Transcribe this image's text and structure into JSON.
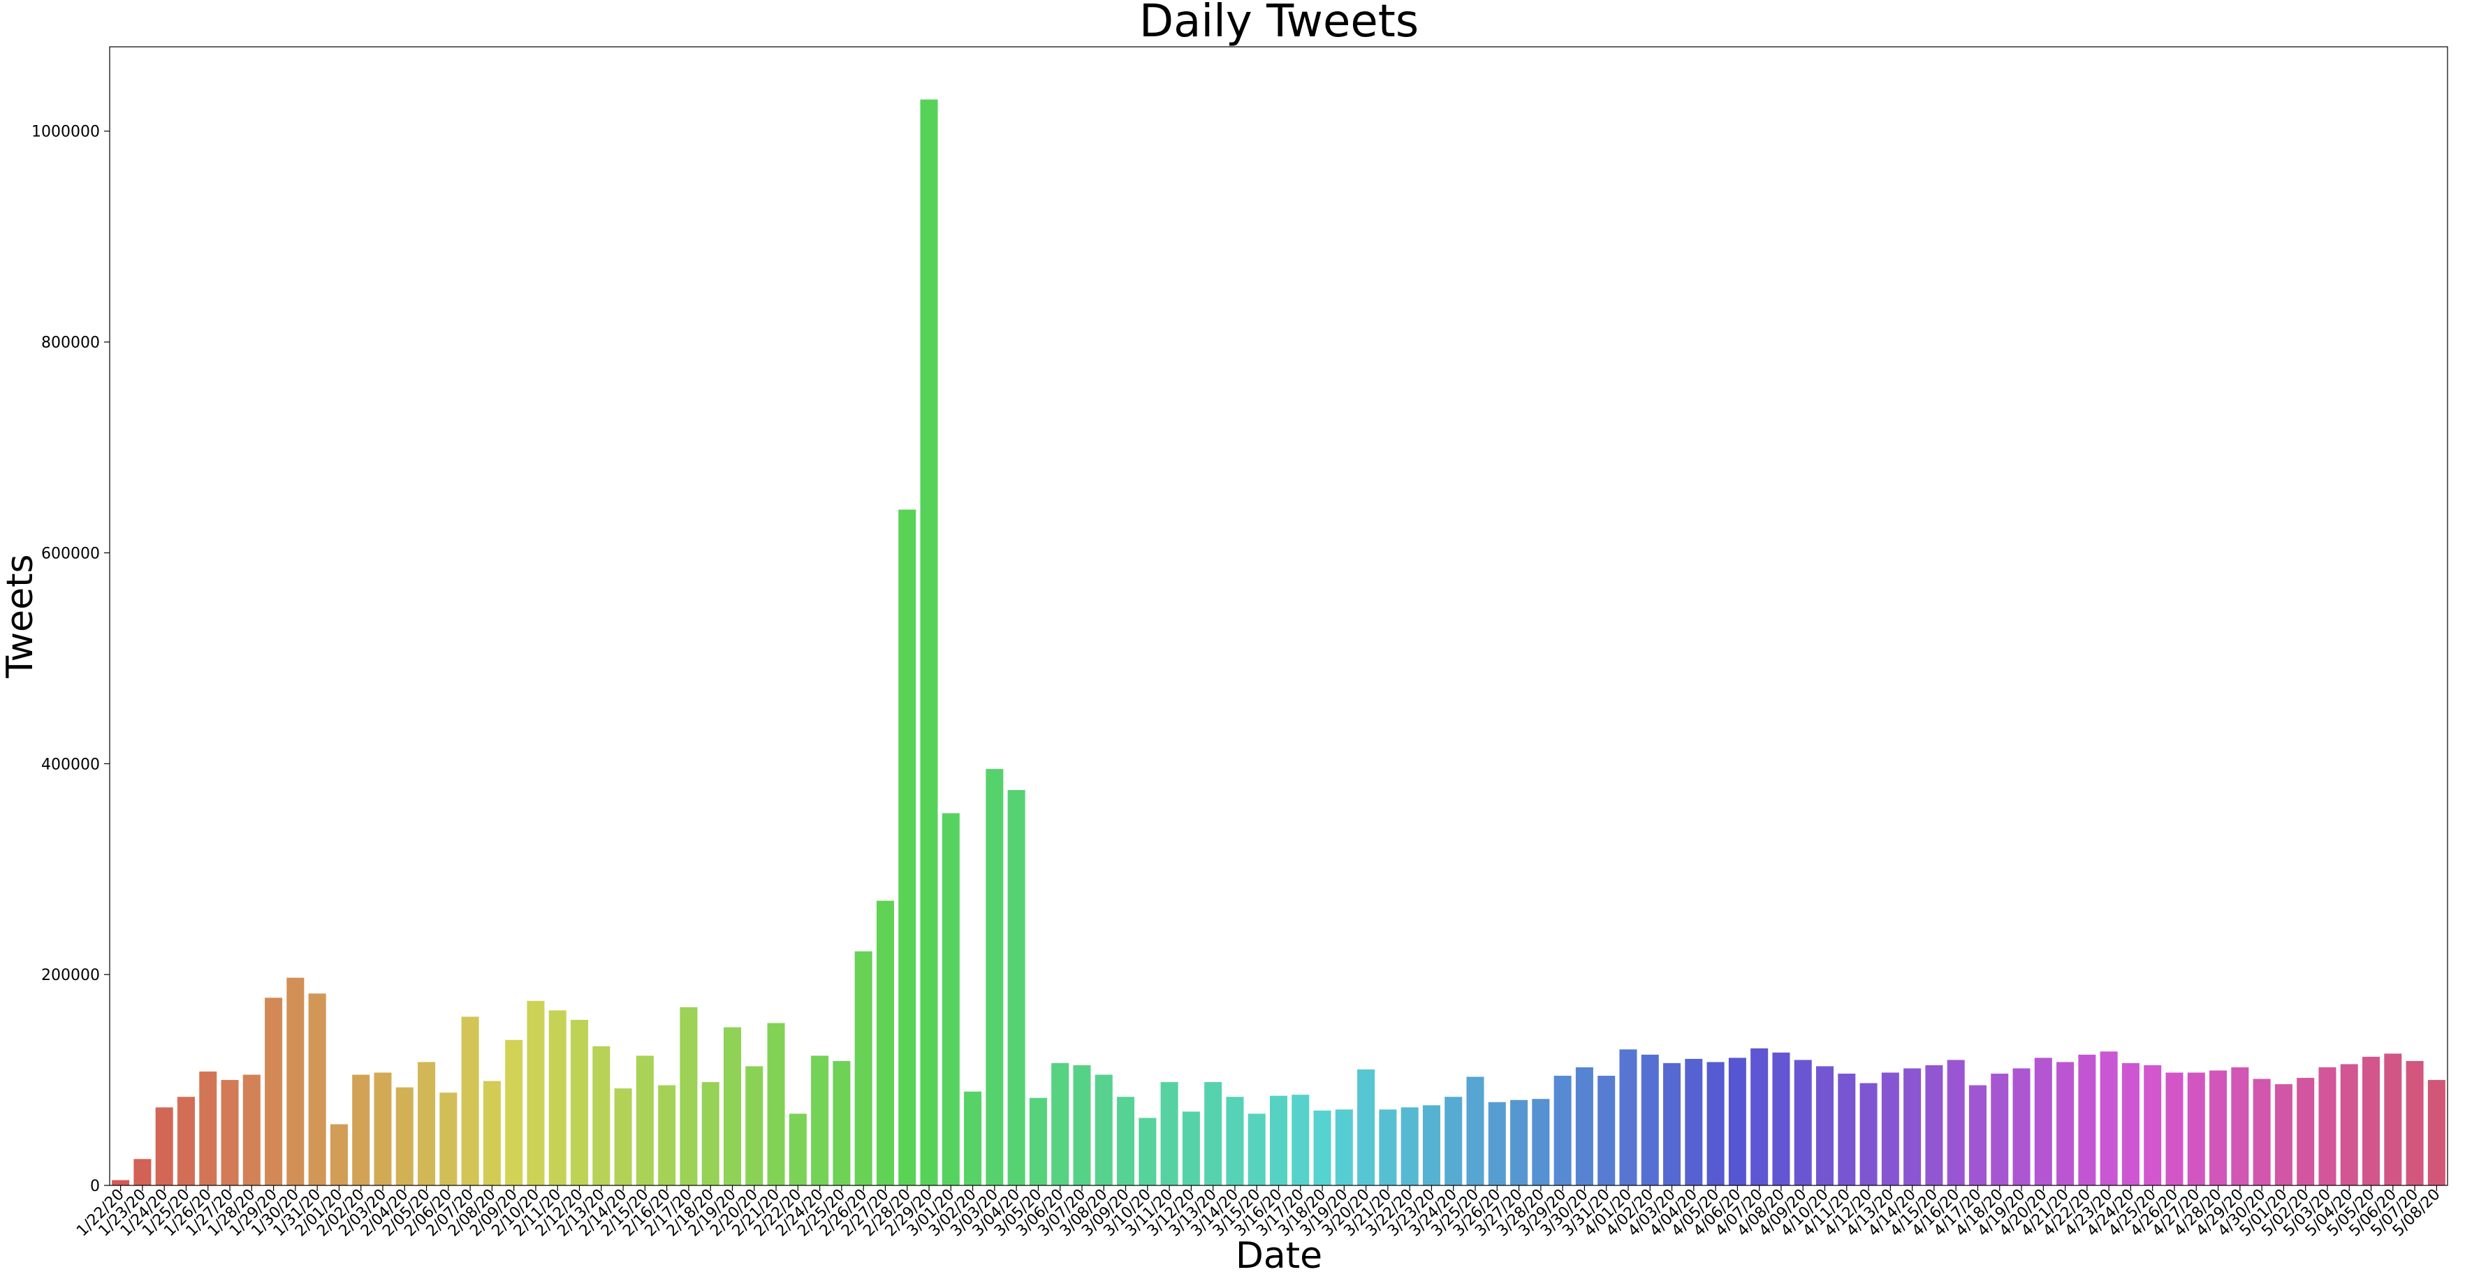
{
  "chart_data": {
    "type": "bar",
    "title": "Daily Tweets",
    "xlabel": "Date",
    "ylabel": "Tweets",
    "ylim": [
      0,
      1080000
    ],
    "yticks": [
      0,
      200000,
      400000,
      600000,
      800000,
      1000000
    ],
    "ytick_labels": [
      "0",
      "200000",
      "400000",
      "600000",
      "800000",
      "1000000"
    ],
    "grid": false,
    "categories": [
      "1/22/20",
      "1/23/20",
      "1/24/20",
      "1/25/20",
      "1/26/20",
      "1/27/20",
      "1/28/20",
      "1/29/20",
      "1/30/20",
      "1/31/20",
      "2/01/20",
      "2/02/20",
      "2/03/20",
      "2/04/20",
      "2/05/20",
      "2/06/20",
      "2/07/20",
      "2/08/20",
      "2/09/20",
      "2/10/20",
      "2/11/20",
      "2/12/20",
      "2/13/20",
      "2/14/20",
      "2/15/20",
      "2/16/20",
      "2/17/20",
      "2/18/20",
      "2/19/20",
      "2/20/20",
      "2/21/20",
      "2/22/20",
      "2/24/20",
      "2/25/20",
      "2/26/20",
      "2/27/20",
      "2/28/20",
      "2/29/20",
      "3/01/20",
      "3/02/20",
      "3/03/20",
      "3/04/20",
      "3/05/20",
      "3/06/20",
      "3/07/20",
      "3/08/20",
      "3/09/20",
      "3/10/20",
      "3/11/20",
      "3/12/20",
      "3/13/20",
      "3/14/20",
      "3/15/20",
      "3/16/20",
      "3/17/20",
      "3/18/20",
      "3/19/20",
      "3/20/20",
      "3/21/20",
      "3/22/20",
      "3/23/20",
      "3/24/20",
      "3/25/20",
      "3/26/20",
      "3/27/20",
      "3/28/20",
      "3/29/20",
      "3/30/20",
      "3/31/20",
      "4/01/20",
      "4/02/20",
      "4/03/20",
      "4/04/20",
      "4/05/20",
      "4/06/20",
      "4/07/20",
      "4/08/20",
      "4/09/20",
      "4/10/20",
      "4/11/20",
      "4/12/20",
      "4/13/20",
      "4/14/20",
      "4/15/20",
      "4/16/20",
      "4/17/20",
      "4/18/20",
      "4/19/20",
      "4/20/20",
      "4/21/20",
      "4/22/20",
      "4/23/20",
      "4/24/20",
      "4/25/20",
      "4/26/20",
      "4/27/20",
      "4/28/20",
      "4/29/20",
      "4/30/20",
      "5/01/20",
      "5/02/20",
      "5/03/20",
      "5/04/20",
      "5/05/20",
      "5/06/20",
      "5/07/20",
      "5/08/20"
    ],
    "values": [
      5000,
      25000,
      74000,
      84000,
      108000,
      100000,
      105000,
      178000,
      197000,
      182000,
      58000,
      105000,
      107000,
      93000,
      117000,
      88000,
      160000,
      99000,
      138000,
      175000,
      166000,
      157000,
      132000,
      92000,
      123000,
      95000,
      169000,
      98000,
      150000,
      113000,
      154000,
      68000,
      123000,
      118000,
      222000,
      270000,
      641000,
      1030000,
      353000,
      89000,
      395000,
      375000,
      83000,
      116000,
      114000,
      105000,
      84000,
      64000,
      98000,
      70000,
      98000,
      84000,
      68000,
      85000,
      86000,
      71000,
      72000,
      110000,
      72000,
      74000,
      76000,
      84000,
      103000,
      79000,
      81000,
      82000,
      104000,
      112000,
      104000,
      129000,
      124000,
      116000,
      120000,
      117000,
      121000,
      130000,
      126000,
      119000,
      113000,
      106000,
      97000,
      107000,
      111000,
      114000,
      119000,
      95000,
      106000,
      111000,
      121000,
      117000,
      124000,
      127000,
      116000,
      114000,
      107000,
      107000,
      109000,
      112000,
      101000,
      96000,
      102000,
      112000,
      115000,
      122000,
      125000,
      118000,
      100000
    ]
  }
}
